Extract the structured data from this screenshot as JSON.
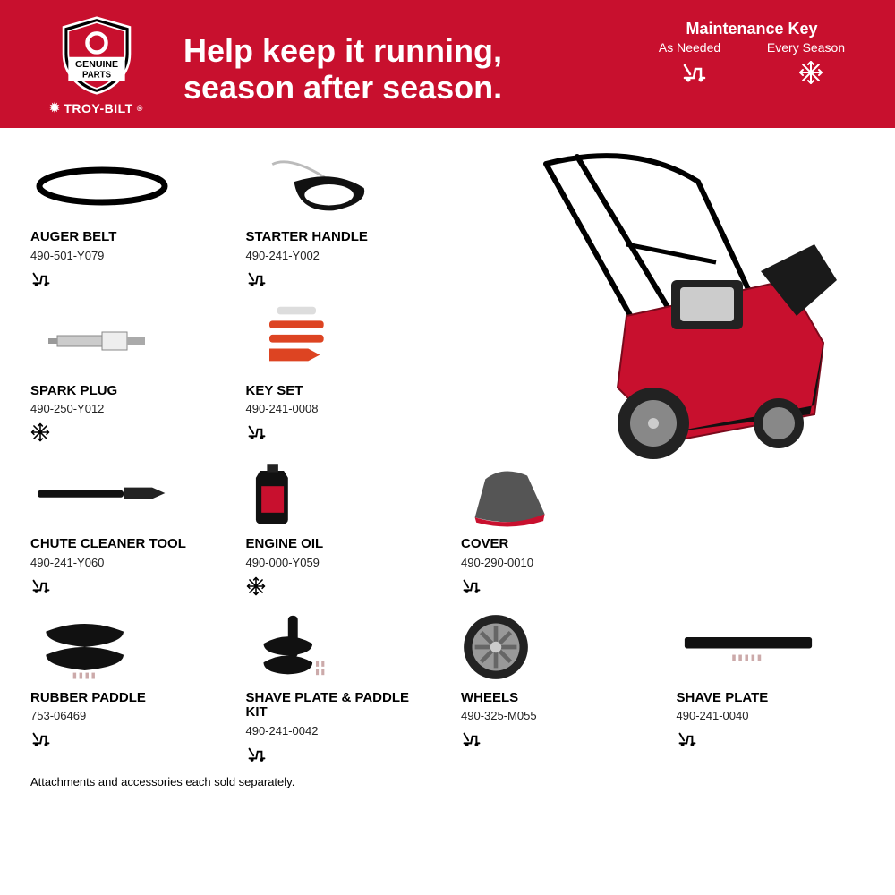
{
  "header": {
    "badge_top": "GENUINE",
    "badge_bottom": "PARTS",
    "brand": "TROY-BILT",
    "headline_l1": "Help keep it running,",
    "headline_l2": "season after season.",
    "key_title": "Maintenance Key",
    "key_asneeded": "As Needed",
    "key_season": "Every Season"
  },
  "colors": {
    "header_bg": "#c8102e",
    "header_text": "#ffffff",
    "body_bg": "#ffffff",
    "text": "#000000"
  },
  "parts": [
    {
      "name": "AUGER BELT",
      "num": "490-501-Y079",
      "maint": "asneeded",
      "row": 0,
      "col": 0
    },
    {
      "name": "STARTER HANDLE",
      "num": "490-241-Y002",
      "maint": "asneeded",
      "row": 0,
      "col": 1
    },
    {
      "name": "SPARK PLUG",
      "num": "490-250-Y012",
      "maint": "season",
      "row": 1,
      "col": 0
    },
    {
      "name": "KEY SET",
      "num": "490-241-0008",
      "maint": "asneeded",
      "row": 1,
      "col": 1
    },
    {
      "name": "CHUTE CLEANER TOOL",
      "num": "490-241-Y060",
      "maint": "asneeded",
      "row": 2,
      "col": 0
    },
    {
      "name": "ENGINE OIL",
      "num": "490-000-Y059",
      "maint": "season",
      "row": 2,
      "col": 1
    },
    {
      "name": "COVER",
      "num": "490-290-0010",
      "maint": "asneeded",
      "row": 2,
      "col": 2
    },
    {
      "name": "RUBBER PADDLE",
      "num": "753-06469",
      "maint": "asneeded",
      "row": 3,
      "col": 0
    },
    {
      "name": "SHAVE PLATE & PADDLE KIT",
      "num": "490-241-0042",
      "maint": "asneeded",
      "row": 3,
      "col": 1
    },
    {
      "name": "WHEELS",
      "num": "490-325-M055",
      "maint": "asneeded",
      "row": 3,
      "col": 2
    },
    {
      "name": "SHAVE PLATE",
      "num": "490-241-0040",
      "maint": "asneeded",
      "row": 3,
      "col": 3
    }
  ],
  "footnote": "Attachments and accessories each sold separately."
}
